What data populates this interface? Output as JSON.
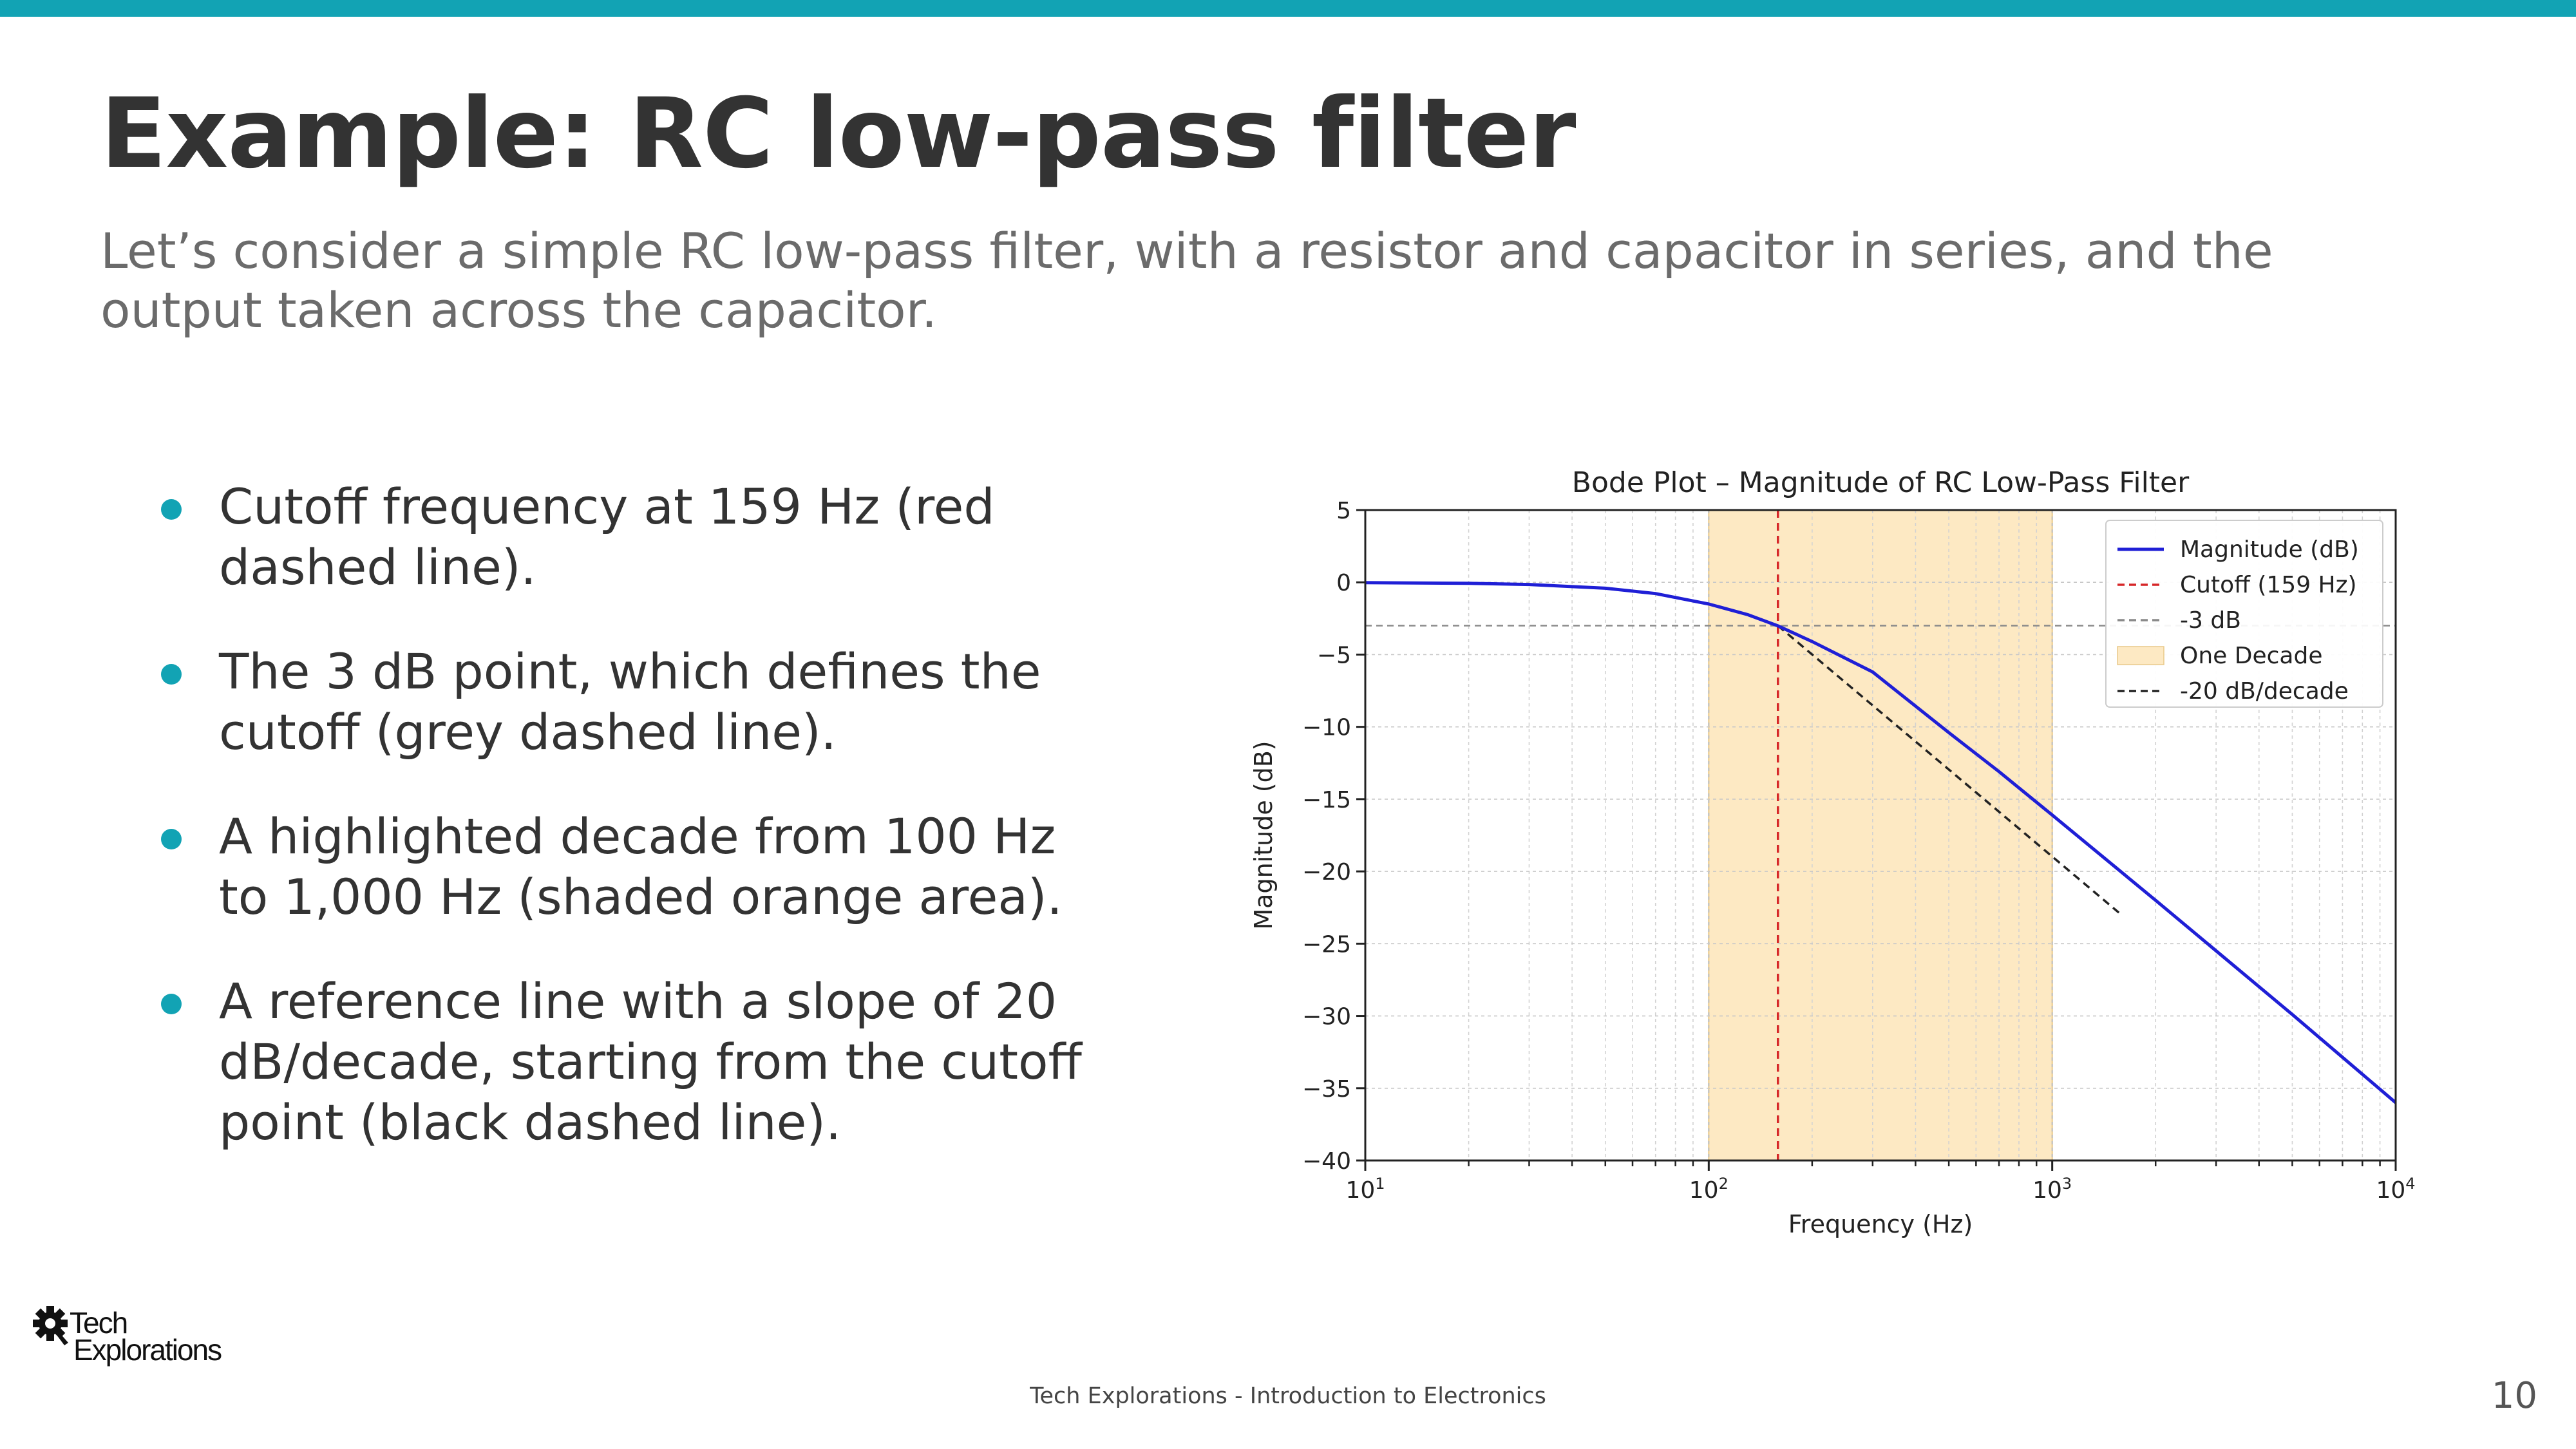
{
  "slide": {
    "title": "Example: RC low-pass filter",
    "subtitle": "Let’s consider a simple RC low-pass filter, with a resistor and capacitor in series, and the output taken across the capacitor.",
    "accent_color": "#12a3b4",
    "bullets": [
      "Cutoff frequency at 159 Hz (red dashed line).",
      "The 3 dB point, which defines the cutoff (grey dashed line).",
      "A highlighted decade from 100 Hz to 1,000 Hz (shaded orange area).",
      "A reference line with a slope of 20 dB/decade, starting from the cutoff point (black dashed line)."
    ]
  },
  "chart_data": {
    "type": "line",
    "title": "Bode Plot – Magnitude of RC Low-Pass Filter",
    "xlabel": "Frequency (Hz)",
    "ylabel": "Magnitude (dB)",
    "x_scale": "log",
    "xlim": [
      10,
      10000
    ],
    "ylim": [
      -40,
      5
    ],
    "yticks": [
      "5",
      "0",
      "−5",
      "−10",
      "−15",
      "−20",
      "−25",
      "−30",
      "−35",
      "−40"
    ],
    "xticks": [
      {
        "base": "10",
        "exp": "1"
      },
      {
        "base": "10",
        "exp": "2"
      },
      {
        "base": "10",
        "exp": "3"
      },
      {
        "base": "10",
        "exp": "4"
      }
    ],
    "grid": true,
    "legend_position": "top-right",
    "cutoff_hz": 159,
    "colors": {
      "magnitude": "#1f1fd6",
      "cutoff": "#d62728",
      "minus3db": "#8a8a8a",
      "decade_fill": "#fde9c3",
      "decade_edge": "#e9c98a",
      "slope": "#222222"
    },
    "series": [
      {
        "name": "Magnitude (dB)",
        "style": "solid",
        "color": "#1f1fd6",
        "x": [
          10,
          20,
          30,
          50,
          70,
          100,
          130,
          159,
          200,
          300,
          500,
          700,
          1000,
          2000,
          5000,
          10000
        ],
        "y": [
          -0.02,
          -0.07,
          -0.15,
          -0.41,
          -0.78,
          -1.5,
          -2.24,
          -3.01,
          -4.1,
          -6.2,
          -10.4,
          -13.1,
          -16.1,
          -22.0,
          -29.9,
          -36.0
        ]
      },
      {
        "name": "Cutoff (159 Hz)",
        "style": "dashed",
        "color": "#d62728"
      },
      {
        "name": "-3 dB",
        "style": "dashed",
        "color": "#8a8a8a"
      },
      {
        "name": "One Decade",
        "style": "fill",
        "color": "#fde9c3",
        "x_range": [
          100,
          1000
        ]
      },
      {
        "name": "-20 dB/decade",
        "style": "dashed",
        "color": "#222222",
        "x": [
          159,
          1590
        ],
        "y": [
          -3,
          -23
        ]
      }
    ]
  },
  "footer": {
    "logo_line1": "Tech",
    "logo_line2": "Explorations",
    "text": "Tech Explorations - Introduction to Electronics",
    "page_number": "10"
  }
}
